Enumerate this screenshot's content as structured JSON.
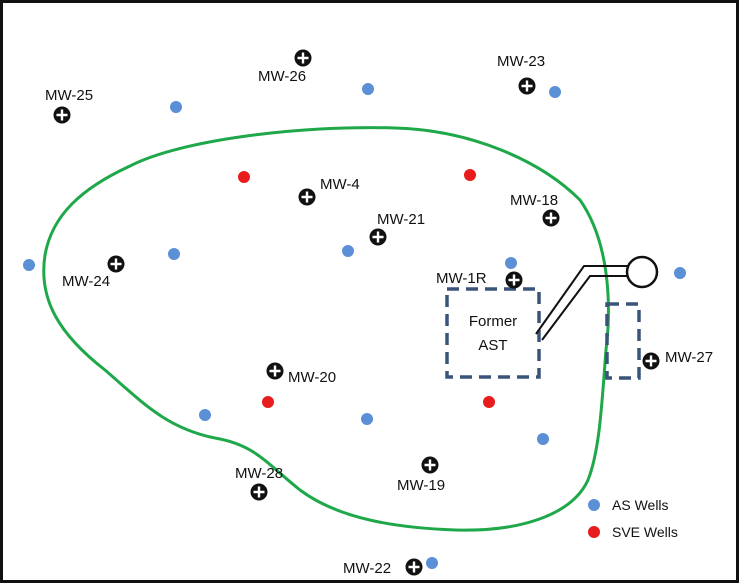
{
  "colors": {
    "plume_outline": "#1fa84a",
    "as_well": "#5b8fd6",
    "sve_well": "#e81c1c",
    "monitoring_well": "#111111",
    "ast_border": "#3a5378",
    "piping": "#111111"
  },
  "monitoring_wells": [
    {
      "id": "MW-26",
      "label": "MW-26"
    },
    {
      "id": "MW-23",
      "label": "MW-23"
    },
    {
      "id": "MW-25",
      "label": "MW-25"
    },
    {
      "id": "MW-4",
      "label": "MW-4"
    },
    {
      "id": "MW-18",
      "label": "MW-18"
    },
    {
      "id": "MW-21",
      "label": "MW-21"
    },
    {
      "id": "MW-24",
      "label": "MW-24"
    },
    {
      "id": "MW-1R",
      "label": "MW-1R"
    },
    {
      "id": "MW-27",
      "label": "MW-27"
    },
    {
      "id": "MW-20",
      "label": "MW-20"
    },
    {
      "id": "MW-28",
      "label": "MW-28"
    },
    {
      "id": "MW-19",
      "label": "MW-19"
    },
    {
      "id": "MW-22",
      "label": "MW-22"
    }
  ],
  "ast": {
    "line1": "Former",
    "line2": "AST"
  },
  "legend": {
    "as_label": "AS Wells",
    "sve_label": "SVE Wells"
  }
}
